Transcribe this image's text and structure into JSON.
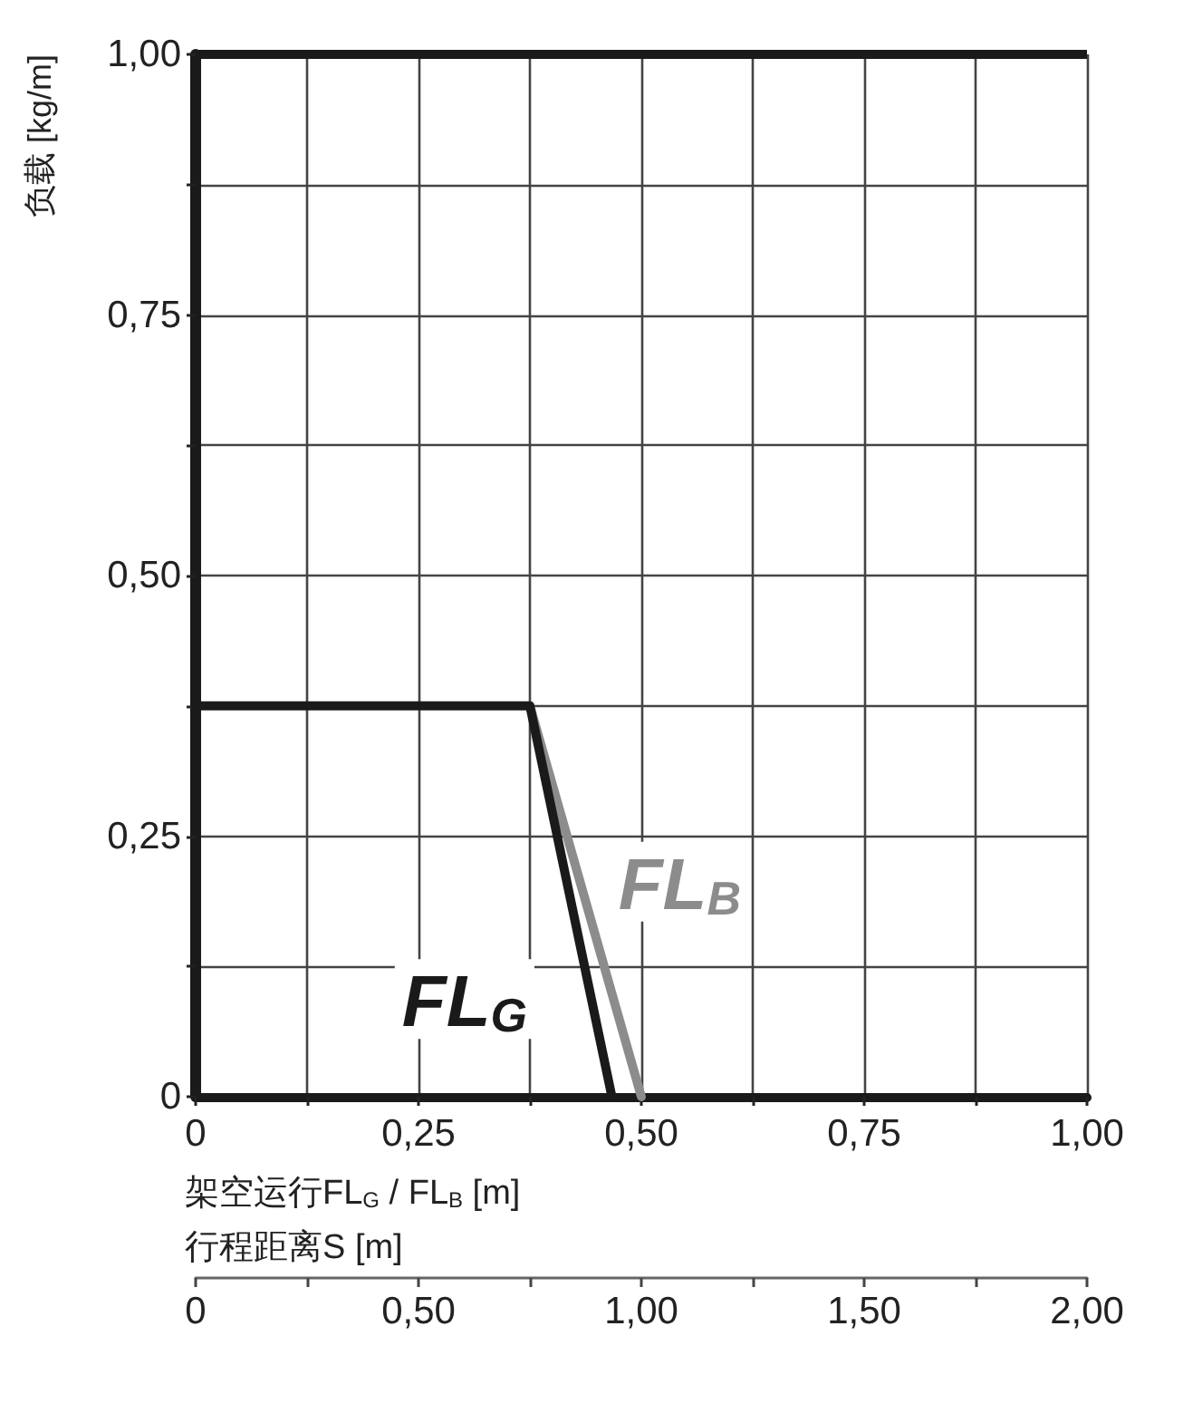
{
  "chart_data": {
    "type": "line",
    "xlabel": "架空运行FL$_{G}$ / FL$_{B}$ [m]",
    "ylabel": "负载 [kg/m]",
    "x2label": "行程距离S [m]",
    "series": [
      {
        "name": "FL$_{G}$",
        "color": "#1a1a1a",
        "x": [
          0,
          0.375,
          0.467
        ],
        "values": [
          0.375,
          0.375,
          0
        ]
      },
      {
        "name": "FL$_{B}$",
        "color": "#8c8c8c",
        "x": [
          0.375,
          0.5
        ],
        "values": [
          0.375,
          0
        ]
      }
    ],
    "xlim": [
      0,
      1
    ],
    "ylim": [
      0,
      1
    ],
    "x2lim": [
      0,
      2
    ],
    "xticks": [
      0,
      {
        "value": 0.125,
        "label": null
      },
      {
        "value": 0.25,
        "label": "0,25"
      },
      {
        "value": 0.375,
        "label": null
      },
      {
        "value": 0.5,
        "label": "0,50"
      },
      {
        "value": 0.625,
        "label": null
      },
      {
        "value": 0.75,
        "label": "0,75"
      },
      {
        "value": 0.875,
        "label": null
      },
      {
        "value": 1,
        "label": "1,00"
      }
    ],
    "yticks": [
      0,
      {
        "value": 0.125,
        "label": null
      },
      {
        "value": 0.25,
        "label": "0,25"
      },
      {
        "value": 0.375,
        "label": null
      },
      {
        "value": 0.5,
        "label": "0,50"
      },
      {
        "value": 0.625,
        "label": null
      },
      {
        "value": 0.75,
        "label": "0,75"
      },
      {
        "value": 0.875,
        "label": null
      },
      {
        "value": 1,
        "label": "1,00"
      }
    ],
    "x2ticks": [
      0,
      {
        "value": 0.25,
        "label": null
      },
      {
        "value": 0.5,
        "label": "0,50"
      },
      {
        "value": 0.75,
        "label": null
      },
      {
        "value": 1,
        "label": "1,00"
      },
      {
        "value": 1.25,
        "label": null
      },
      {
        "value": 1.5,
        "label": "1,50"
      },
      {
        "value": 1.75,
        "label": null
      },
      {
        "value": 2,
        "label": "2,00"
      }
    ],
    "grid": true,
    "marker": "none",
    "line_style": "solid"
  }
}
